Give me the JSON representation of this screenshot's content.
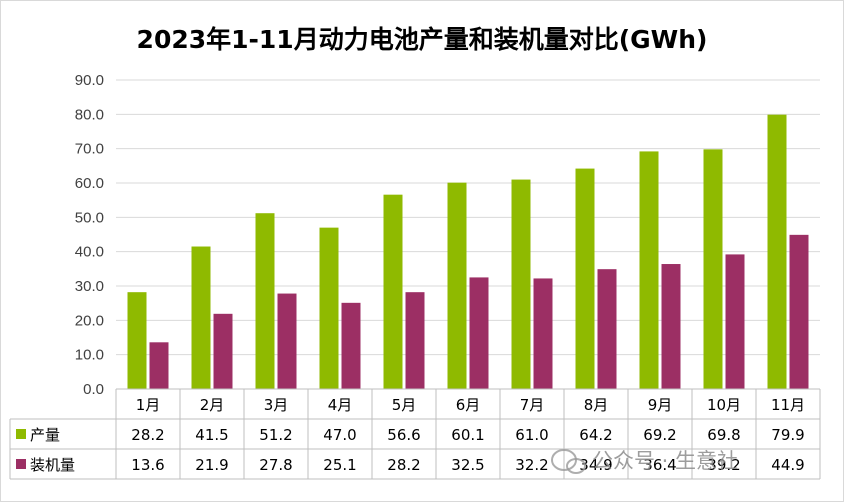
{
  "title": "2023年1-11月动力电池产量和装机量对比(GWh)",
  "watermark": "公众号 · 生意社",
  "chart_data": {
    "type": "bar",
    "categories": [
      "1月",
      "2月",
      "3月",
      "4月",
      "5月",
      "6月",
      "7月",
      "8月",
      "9月",
      "10月",
      "11月"
    ],
    "series": [
      {
        "name": "产量",
        "color": "#8fba00",
        "values": [
          28.2,
          41.5,
          51.2,
          47.0,
          56.6,
          60.1,
          61.0,
          64.2,
          69.2,
          69.8,
          79.9
        ]
      },
      {
        "name": "装机量",
        "color": "#9c2f64",
        "values": [
          13.6,
          21.9,
          27.8,
          25.1,
          28.2,
          32.5,
          32.2,
          34.9,
          36.4,
          39.2,
          44.9
        ]
      }
    ],
    "yticks": [
      "0.0",
      "10.0",
      "20.0",
      "30.0",
      "40.0",
      "50.0",
      "60.0",
      "70.0",
      "80.0",
      "90.0"
    ],
    "ylim": [
      0,
      90
    ],
    "grid": true,
    "legend": "data table",
    "data_table": true
  }
}
